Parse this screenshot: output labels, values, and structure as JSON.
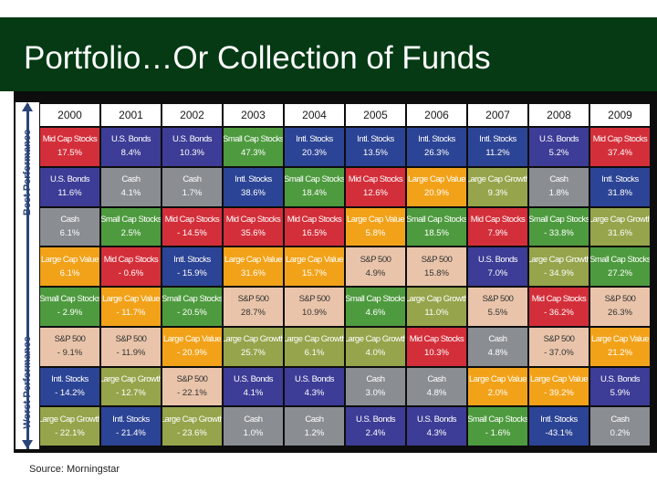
{
  "title": "Portfolio…Or Collection of Funds",
  "axis": {
    "best": "Best Performance",
    "worst": "Worst Performance"
  },
  "source": "Source:  Morningstar",
  "colors": {
    "Mid Cap Stocks": {
      "bg": "#d32f3a",
      "fg": "#ffffff"
    },
    "U.S. Bonds": {
      "bg": "#3d3c96",
      "fg": "#ffffff"
    },
    "Small Cap Stocks": {
      "bg": "#4e9b3f",
      "fg": "#ffffff"
    },
    "Intl. Stocks": {
      "bg": "#2c4495",
      "fg": "#ffffff"
    },
    "Cash": {
      "bg": "#8a8e93",
      "fg": "#ffffff"
    },
    "Large Cap Value": {
      "bg": "#f2a219",
      "fg": "#ffffff"
    },
    "Large Cap Growth": {
      "bg": "#96a44b",
      "fg": "#ffffff"
    },
    "S&P 500": {
      "bg": "#e9c4aa",
      "fg": "#333333"
    }
  },
  "years": [
    "2000",
    "2001",
    "2002",
    "2003",
    "2004",
    "2005",
    "2006",
    "2007",
    "2008",
    "2009"
  ],
  "table": [
    [
      {
        "name": "Mid Cap Stocks",
        "value": "17.5%"
      },
      {
        "name": "U.S. Bonds",
        "value": "11.6%"
      },
      {
        "name": "Cash",
        "value": "6.1%"
      },
      {
        "name": "Large Cap Value",
        "value": "6.1%"
      },
      {
        "name": "Small Cap Stocks",
        "value": "- 2.9%"
      },
      {
        "name": "S&P 500",
        "value": "- 9.1%"
      },
      {
        "name": "Intl. Stocks",
        "value": "- 14.2%"
      },
      {
        "name": "Large Cap Growth",
        "value": "- 22.1%"
      }
    ],
    [
      {
        "name": "U.S. Bonds",
        "value": "8.4%"
      },
      {
        "name": "Cash",
        "value": "4.1%"
      },
      {
        "name": "Small Cap Stocks",
        "value": "2.5%"
      },
      {
        "name": "Mid Cap Stocks",
        "value": "- 0.6%"
      },
      {
        "name": "Large Cap Value",
        "value": "- 11.7%"
      },
      {
        "name": "S&P 500",
        "value": "- 11.9%"
      },
      {
        "name": "Large Cap Growth",
        "value": "- 12.7%"
      },
      {
        "name": "Intl. Stocks",
        "value": "- 21.4%"
      }
    ],
    [
      {
        "name": "U.S. Bonds",
        "value": "10.3%"
      },
      {
        "name": "Cash",
        "value": "1.7%"
      },
      {
        "name": "Mid Cap Stocks",
        "value": "- 14.5%"
      },
      {
        "name": "Intl. Stocks",
        "value": "- 15.9%"
      },
      {
        "name": "Small Cap Stocks",
        "value": "- 20.5%"
      },
      {
        "name": "Large Cap Value",
        "value": "- 20.9%"
      },
      {
        "name": "S&P 500",
        "value": "- 22.1%"
      },
      {
        "name": "Large Cap Growth",
        "value": "- 23.6%"
      }
    ],
    [
      {
        "name": "Small Cap Stocks",
        "value": "47.3%"
      },
      {
        "name": "Intl. Stocks",
        "value": "38.6%"
      },
      {
        "name": "Mid Cap Stocks",
        "value": "35.6%"
      },
      {
        "name": "Large Cap Value",
        "value": "31.6%"
      },
      {
        "name": "S&P 500",
        "value": "28.7%"
      },
      {
        "name": "Large Cap Growth",
        "value": "25.7%"
      },
      {
        "name": "U.S. Bonds",
        "value": "4.1%"
      },
      {
        "name": "Cash",
        "value": "1.0%"
      }
    ],
    [
      {
        "name": "Intl. Stocks",
        "value": "20.3%"
      },
      {
        "name": "Small Cap Stocks",
        "value": "18.4%"
      },
      {
        "name": "Mid Cap Stocks",
        "value": "16.5%"
      },
      {
        "name": "Large Cap Value",
        "value": "15.7%"
      },
      {
        "name": "S&P 500",
        "value": "10.9%"
      },
      {
        "name": "Large Cap Growth",
        "value": "6.1%"
      },
      {
        "name": "U.S. Bonds",
        "value": "4.3%"
      },
      {
        "name": "Cash",
        "value": "1.2%"
      }
    ],
    [
      {
        "name": "Intl. Stocks",
        "value": "13.5%"
      },
      {
        "name": "Mid Cap Stocks",
        "value": "12.6%"
      },
      {
        "name": "Large Cap Value",
        "value": "5.8%"
      },
      {
        "name": "S&P 500",
        "value": "4.9%"
      },
      {
        "name": "Small Cap Stocks",
        "value": "4.6%"
      },
      {
        "name": "Large Cap Growth",
        "value": "4.0%"
      },
      {
        "name": "Cash",
        "value": "3.0%"
      },
      {
        "name": "U.S. Bonds",
        "value": "2.4%"
      }
    ],
    [
      {
        "name": "Intl. Stocks",
        "value": "26.3%"
      },
      {
        "name": "Large Cap Value",
        "value": "20.9%"
      },
      {
        "name": "Small Cap Stocks",
        "value": "18.5%"
      },
      {
        "name": "S&P 500",
        "value": "15.8%"
      },
      {
        "name": "Large Cap Growth",
        "value": "11.0%"
      },
      {
        "name": "Mid Cap Stocks",
        "value": "10.3%"
      },
      {
        "name": "Cash",
        "value": "4.8%"
      },
      {
        "name": "U.S. Bonds",
        "value": "4.3%"
      }
    ],
    [
      {
        "name": "Intl. Stocks",
        "value": "11.2%"
      },
      {
        "name": "Large Cap Growth",
        "value": "9.3%"
      },
      {
        "name": "Mid Cap Stocks",
        "value": "7.9%"
      },
      {
        "name": "U.S. Bonds",
        "value": "7.0%"
      },
      {
        "name": "S&P 500",
        "value": "5.5%"
      },
      {
        "name": "Cash",
        "value": "4.8%"
      },
      {
        "name": "Large Cap Value",
        "value": "2.0%"
      },
      {
        "name": "Small Cap Stocks",
        "value": "- 1.6%"
      }
    ],
    [
      {
        "name": "U.S. Bonds",
        "value": "5.2%"
      },
      {
        "name": "Cash",
        "value": "1.8%"
      },
      {
        "name": "Small Cap Stocks",
        "value": "- 33.8%"
      },
      {
        "name": "Large Cap Growth",
        "value": "- 34.9%"
      },
      {
        "name": "Mid Cap Stocks",
        "value": "- 36.2%"
      },
      {
        "name": "S&P 500",
        "value": "- 37.0%"
      },
      {
        "name": "Large Cap Value",
        "value": "- 39.2%"
      },
      {
        "name": "Intl. Stocks",
        "value": "-43.1%"
      }
    ],
    [
      {
        "name": "Mid Cap Stocks",
        "value": "37.4%"
      },
      {
        "name": "Intl. Stocks",
        "value": "31.8%"
      },
      {
        "name": "Large Cap Growth",
        "value": "31.6%"
      },
      {
        "name": "Small Cap Stocks",
        "value": "27.2%"
      },
      {
        "name": "S&P 500",
        "value": "26.3%"
      },
      {
        "name": "Large Cap Value",
        "value": "21.2%"
      },
      {
        "name": "U.S. Bonds",
        "value": "5.9%"
      },
      {
        "name": "Cash",
        "value": "0.2%"
      }
    ]
  ]
}
